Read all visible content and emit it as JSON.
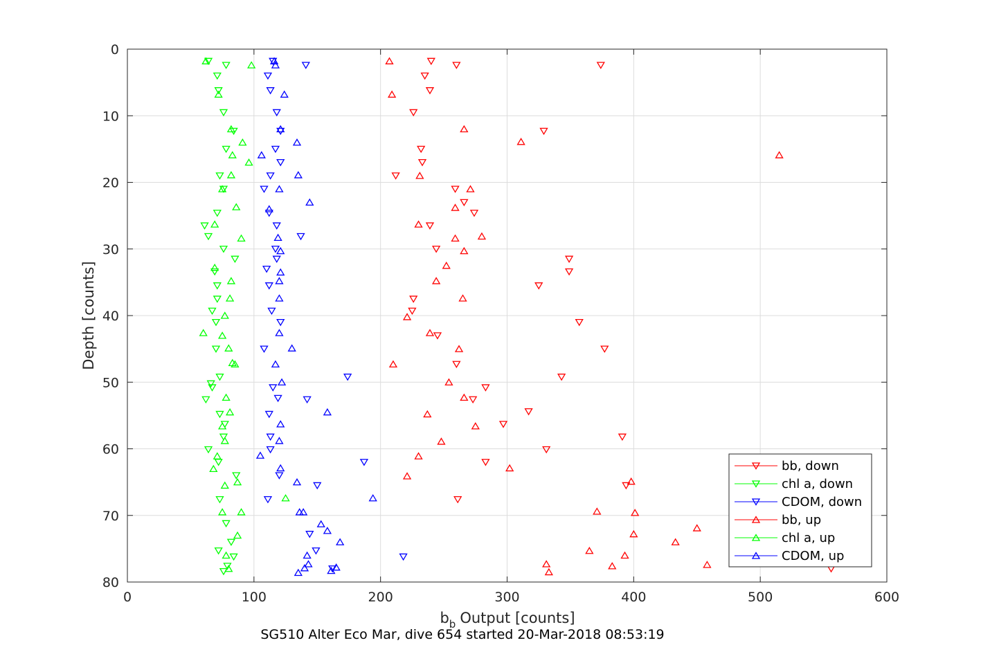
{
  "chart_data": {
    "type": "scatter",
    "xlabel": "Output [counts]",
    "xlabel_symbol": "b",
    "xlabel_subscript": "b",
    "ylabel": "Depth [counts]",
    "caption": "SG510 Alter Eco Mar, dive 654 started 20-Mar-2018 08:53:19",
    "xlim": [
      0,
      600
    ],
    "ylim": [
      0,
      80
    ],
    "y_reversed": true,
    "grid": true,
    "legend_position": "bottom-right",
    "x_ticks": [
      "0",
      "100",
      "200",
      "300",
      "400",
      "500",
      "600"
    ],
    "y_ticks": [
      "0",
      "10",
      "20",
      "30",
      "40",
      "50",
      "60",
      "70",
      "80"
    ],
    "series": [
      {
        "name": "bb, down",
        "color": "#ff0000",
        "marker": "triangle-down",
        "points": [
          [
            240,
            1.8
          ],
          [
            260,
            2.4
          ],
          [
            374,
            2.4
          ],
          [
            235,
            4
          ],
          [
            239,
            6.2
          ],
          [
            226,
            9.5
          ],
          [
            329,
            12.3
          ],
          [
            232,
            15
          ],
          [
            233,
            17
          ],
          [
            212,
            19
          ],
          [
            259,
            21
          ],
          [
            266,
            23
          ],
          [
            274,
            24.6
          ],
          [
            239,
            26.5
          ],
          [
            244,
            30
          ],
          [
            349,
            31.5
          ],
          [
            349,
            33.4
          ],
          [
            325,
            35.5
          ],
          [
            226,
            37.5
          ],
          [
            225,
            39.3
          ],
          [
            357,
            41
          ],
          [
            245,
            43
          ],
          [
            377,
            45
          ],
          [
            260,
            47.3
          ],
          [
            343,
            49.2
          ],
          [
            283,
            50.8
          ],
          [
            273,
            52.6
          ],
          [
            317,
            54.4
          ],
          [
            297,
            56.3
          ],
          [
            391,
            58.2
          ],
          [
            331,
            60.1
          ],
          [
            283,
            62
          ],
          [
            261,
            67.6
          ],
          [
            394,
            65.5
          ],
          [
            556,
            78
          ]
        ]
      },
      {
        "name": "chl a, down",
        "color": "#00ff00",
        "marker": "triangle-down",
        "points": [
          [
            64,
            1.8
          ],
          [
            78,
            2.4
          ],
          [
            71,
            4
          ],
          [
            72,
            6.2
          ],
          [
            76,
            9.5
          ],
          [
            84,
            12.3
          ],
          [
            78,
            15
          ],
          [
            73,
            19
          ],
          [
            76,
            21
          ],
          [
            71,
            24.6
          ],
          [
            61,
            26.5
          ],
          [
            64,
            28.1
          ],
          [
            76,
            30
          ],
          [
            85,
            31.5
          ],
          [
            69,
            33.4
          ],
          [
            71,
            35.5
          ],
          [
            71,
            37.5
          ],
          [
            67,
            39.3
          ],
          [
            70,
            41
          ],
          [
            70,
            45
          ],
          [
            73,
            49.2
          ],
          [
            66,
            50.2
          ],
          [
            67,
            50.8
          ],
          [
            62,
            52.6
          ],
          [
            73,
            54.8
          ],
          [
            77,
            56.3
          ],
          [
            76,
            58.2
          ],
          [
            64,
            60.1
          ],
          [
            72,
            62
          ],
          [
            86,
            64
          ],
          [
            73,
            67.6
          ],
          [
            78,
            71.2
          ],
          [
            82,
            74
          ],
          [
            72,
            75.3
          ],
          [
            84,
            76.2
          ],
          [
            79,
            77.6
          ],
          [
            76,
            78.4
          ]
        ]
      },
      {
        "name": "CDOM, down",
        "color": "#0000ff",
        "marker": "triangle-down",
        "points": [
          [
            115,
            1.8
          ],
          [
            141,
            2.4
          ],
          [
            111,
            4
          ],
          [
            113,
            6.2
          ],
          [
            118,
            9.5
          ],
          [
            121,
            12.3
          ],
          [
            117,
            15
          ],
          [
            121,
            17
          ],
          [
            113,
            19
          ],
          [
            108,
            21
          ],
          [
            112,
            24.6
          ],
          [
            118,
            26.5
          ],
          [
            137,
            28.1
          ],
          [
            117,
            30
          ],
          [
            118,
            31.5
          ],
          [
            110,
            33
          ],
          [
            112,
            35.5
          ],
          [
            114,
            39.3
          ],
          [
            121,
            41
          ],
          [
            108,
            45
          ],
          [
            174,
            49.2
          ],
          [
            115,
            50.8
          ],
          [
            119,
            52.4
          ],
          [
            142,
            52.6
          ],
          [
            112,
            54.8
          ],
          [
            113,
            58.2
          ],
          [
            113,
            60.1
          ],
          [
            187,
            62
          ],
          [
            120,
            64
          ],
          [
            150,
            65.5
          ],
          [
            111,
            67.6
          ],
          [
            144,
            72.8
          ],
          [
            149,
            75.3
          ],
          [
            218,
            76.2
          ],
          [
            162,
            78
          ]
        ]
      },
      {
        "name": "bb, up",
        "color": "#ff0000",
        "marker": "triangle-up",
        "points": [
          [
            207,
            1.8
          ],
          [
            209,
            6.8
          ],
          [
            266,
            12
          ],
          [
            311,
            13.9
          ],
          [
            515,
            15.9
          ],
          [
            231,
            19
          ],
          [
            271,
            21
          ],
          [
            259,
            23.8
          ],
          [
            230,
            26.3
          ],
          [
            280,
            28.1
          ],
          [
            259,
            28.4
          ],
          [
            266,
            30.3
          ],
          [
            252,
            32.5
          ],
          [
            244,
            34.8
          ],
          [
            265,
            37.4
          ],
          [
            221,
            40.2
          ],
          [
            239,
            42.6
          ],
          [
            262,
            45
          ],
          [
            210,
            47.3
          ],
          [
            254,
            50
          ],
          [
            266,
            52.3
          ],
          [
            237,
            54.8
          ],
          [
            275,
            56.6
          ],
          [
            248,
            58.9
          ],
          [
            230,
            61.1
          ],
          [
            221,
            64.1
          ],
          [
            302,
            62.9
          ],
          [
            398,
            64.9
          ],
          [
            371,
            69.4
          ],
          [
            401,
            69.6
          ],
          [
            400,
            72.8
          ],
          [
            450,
            71.9
          ],
          [
            433,
            74.0
          ],
          [
            365,
            75.3
          ],
          [
            393,
            76
          ],
          [
            458,
            77.4
          ],
          [
            331,
            77.3
          ],
          [
            383,
            77.6
          ],
          [
            333,
            78.5
          ]
        ]
      },
      {
        "name": "chl a, up",
        "color": "#00ff00",
        "marker": "triangle-up",
        "points": [
          [
            62,
            1.8
          ],
          [
            98,
            2.4
          ],
          [
            72,
            6.8
          ],
          [
            82,
            12
          ],
          [
            91,
            14
          ],
          [
            83,
            15.9
          ],
          [
            96,
            17
          ],
          [
            82,
            18.9
          ],
          [
            75,
            21
          ],
          [
            86,
            23.7
          ],
          [
            69,
            26.3
          ],
          [
            90,
            28.4
          ],
          [
            69,
            32.8
          ],
          [
            82,
            34.8
          ],
          [
            81,
            37.4
          ],
          [
            77,
            40
          ],
          [
            60,
            42.6
          ],
          [
            75,
            43
          ],
          [
            80,
            44.9
          ],
          [
            83,
            47.1
          ],
          [
            85,
            47.3
          ],
          [
            78,
            52.3
          ],
          [
            81,
            54.5
          ],
          [
            75,
            56.6
          ],
          [
            77,
            58.8
          ],
          [
            71,
            61.1
          ],
          [
            68,
            63
          ],
          [
            87,
            65
          ],
          [
            77,
            65.5
          ],
          [
            125,
            67.4
          ],
          [
            75,
            69.5
          ],
          [
            90,
            69.5
          ],
          [
            87,
            73
          ],
          [
            78,
            76
          ],
          [
            80,
            78
          ]
        ]
      },
      {
        "name": "CDOM, up",
        "color": "#0000ff",
        "marker": "triangle-up",
        "points": [
          [
            116,
            1.8
          ],
          [
            117,
            2.4
          ],
          [
            124,
            6.8
          ],
          [
            121,
            12
          ],
          [
            134,
            14
          ],
          [
            106,
            15.9
          ],
          [
            135,
            18.9
          ],
          [
            120,
            21
          ],
          [
            144,
            23
          ],
          [
            112,
            24
          ],
          [
            119,
            28.3
          ],
          [
            121,
            30.3
          ],
          [
            121,
            33.5
          ],
          [
            120,
            34.8
          ],
          [
            120,
            37.4
          ],
          [
            120,
            42.6
          ],
          [
            130,
            44.9
          ],
          [
            117,
            47.3
          ],
          [
            122,
            50
          ],
          [
            158,
            54.5
          ],
          [
            121,
            56.3
          ],
          [
            120,
            58.8
          ],
          [
            105,
            61
          ],
          [
            121,
            62.9
          ],
          [
            134,
            65
          ],
          [
            194,
            67.4
          ],
          [
            136,
            69.5
          ],
          [
            139,
            69.5
          ],
          [
            153,
            71.3
          ],
          [
            158,
            72.3
          ],
          [
            168,
            74
          ],
          [
            142,
            76
          ],
          [
            143,
            77.3
          ],
          [
            165,
            77.8
          ],
          [
            161,
            78.3
          ],
          [
            135,
            78.6
          ],
          [
            140,
            77.9
          ]
        ]
      }
    ]
  }
}
